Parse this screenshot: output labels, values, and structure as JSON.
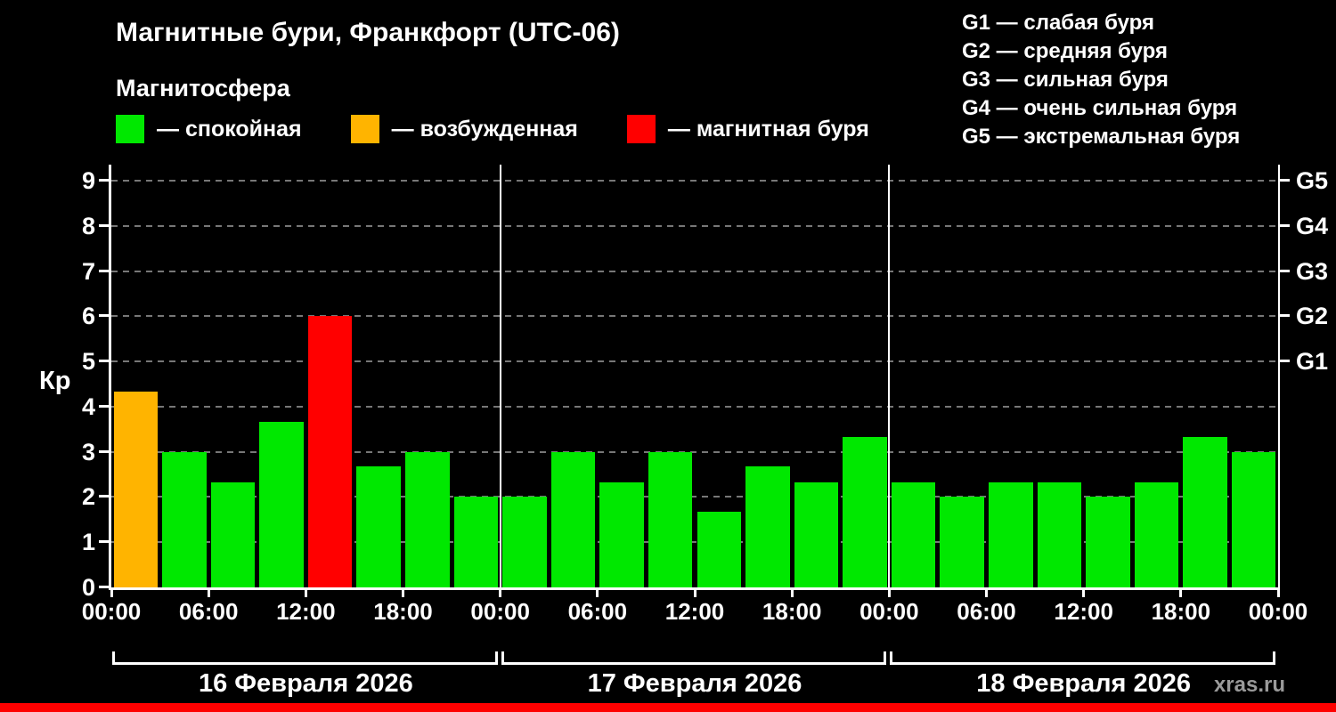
{
  "header": {
    "title": "Магнитные бури, Франкфорт (UTC-06)",
    "subtitle": "Магнитосфера"
  },
  "legend": [
    {
      "status": "quiet",
      "label": "— спокойная"
    },
    {
      "status": "excited",
      "label": "— возбужденная"
    },
    {
      "status": "storm",
      "label": "— магнитная буря"
    }
  ],
  "g_legend": [
    "G1 — слабая буря",
    "G2 — средняя буря",
    "G3 — сильная буря",
    "G4 — очень сильная буря",
    "G5 — экстремальная буря"
  ],
  "watermark": "xras.ru",
  "colors": {
    "quiet": "#00e800",
    "excited": "#ffb400",
    "storm": "#ff0000",
    "axis": "#ffffff",
    "grid": "#777777",
    "background": "#000000",
    "watermark_text": "#9a9a9a",
    "bottom_strip": "#ff0000"
  },
  "chart_data": {
    "type": "bar",
    "title": "Магнитные бури, Франкфорт (UTC-06)",
    "ylabel": "Кр",
    "ylim": [
      0,
      9
    ],
    "y_ticks": [
      0,
      1,
      2,
      3,
      4,
      5,
      6,
      7,
      8,
      9
    ],
    "right_axis": [
      {
        "value": 5,
        "label": "G1"
      },
      {
        "value": 6,
        "label": "G2"
      },
      {
        "value": 7,
        "label": "G3"
      },
      {
        "value": 8,
        "label": "G4"
      },
      {
        "value": 9,
        "label": "G5"
      }
    ],
    "x_tick_labels": [
      "00:00",
      "06:00",
      "12:00",
      "18:00",
      "00:00",
      "06:00",
      "12:00",
      "18:00",
      "00:00",
      "06:00",
      "12:00",
      "18:00",
      "00:00"
    ],
    "hours_per_bar": 3,
    "grid": true,
    "days": [
      {
        "date": "16 Февраля 2026",
        "values": [
          4.33,
          3.0,
          2.33,
          3.67,
          6.0,
          2.67,
          3.0,
          2.0
        ],
        "statuses": [
          "excited",
          "quiet",
          "quiet",
          "quiet",
          "storm",
          "quiet",
          "quiet",
          "quiet"
        ]
      },
      {
        "date": "17 Февраля 2026",
        "values": [
          2.0,
          3.0,
          2.33,
          3.0,
          1.67,
          2.67,
          2.33,
          3.33
        ],
        "statuses": [
          "quiet",
          "quiet",
          "quiet",
          "quiet",
          "quiet",
          "quiet",
          "quiet",
          "quiet"
        ]
      },
      {
        "date": "18 Февраля 2026",
        "values": [
          2.33,
          2.0,
          2.33,
          2.33,
          2.0,
          2.33,
          3.33,
          3.0
        ],
        "statuses": [
          "quiet",
          "quiet",
          "quiet",
          "quiet",
          "quiet",
          "quiet",
          "quiet",
          "quiet"
        ]
      }
    ]
  }
}
